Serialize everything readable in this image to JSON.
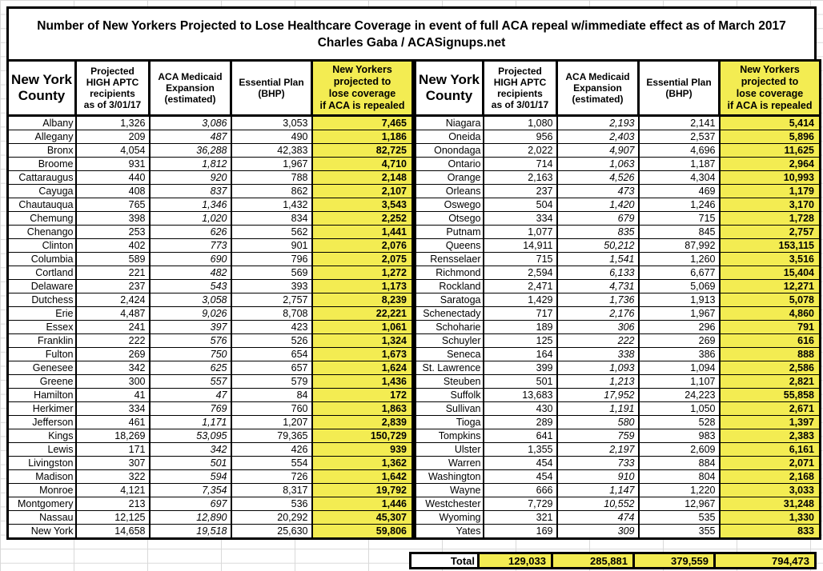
{
  "title": {
    "line1": "Number of New Yorkers Projected to Lose Healthcare Coverage in event of full ACA repeal w/immediate effect as of March 2017",
    "line2": "Charles Gaba / ACASignups.net"
  },
  "table": {
    "headers": [
      "New York\nCounty",
      "Projected\nHIGH APTC\nrecipients\nas of 3/01/17",
      "ACA Medicaid\nExpansion\n(estimated)",
      "Essential Plan\n(BHP)",
      "New Yorkers\nprojected to\nlose coverage\nif ACA is repealed"
    ],
    "left_rows": [
      [
        "Albany",
        "1,326",
        "3,086",
        "3,053",
        "7,465"
      ],
      [
        "Allegany",
        "209",
        "487",
        "490",
        "1,186"
      ],
      [
        "Bronx",
        "4,054",
        "36,288",
        "42,383",
        "82,725"
      ],
      [
        "Broome",
        "931",
        "1,812",
        "1,967",
        "4,710"
      ],
      [
        "Cattaraugus",
        "440",
        "920",
        "788",
        "2,148"
      ],
      [
        "Cayuga",
        "408",
        "837",
        "862",
        "2,107"
      ],
      [
        "Chautauqua",
        "765",
        "1,346",
        "1,432",
        "3,543"
      ],
      [
        "Chemung",
        "398",
        "1,020",
        "834",
        "2,252"
      ],
      [
        "Chenango",
        "253",
        "626",
        "562",
        "1,441"
      ],
      [
        "Clinton",
        "402",
        "773",
        "901",
        "2,076"
      ],
      [
        "Columbia",
        "589",
        "690",
        "796",
        "2,075"
      ],
      [
        "Cortland",
        "221",
        "482",
        "569",
        "1,272"
      ],
      [
        "Delaware",
        "237",
        "543",
        "393",
        "1,173"
      ],
      [
        "Dutchess",
        "2,424",
        "3,058",
        "2,757",
        "8,239"
      ],
      [
        "Erie",
        "4,487",
        "9,026",
        "8,708",
        "22,221"
      ],
      [
        "Essex",
        "241",
        "397",
        "423",
        "1,061"
      ],
      [
        "Franklin",
        "222",
        "576",
        "526",
        "1,324"
      ],
      [
        "Fulton",
        "269",
        "750",
        "654",
        "1,673"
      ],
      [
        "Genesee",
        "342",
        "625",
        "657",
        "1,624"
      ],
      [
        "Greene",
        "300",
        "557",
        "579",
        "1,436"
      ],
      [
        "Hamilton",
        "41",
        "47",
        "84",
        "172"
      ],
      [
        "Herkimer",
        "334",
        "769",
        "760",
        "1,863"
      ],
      [
        "Jefferson",
        "461",
        "1,171",
        "1,207",
        "2,839"
      ],
      [
        "Kings",
        "18,269",
        "53,095",
        "79,365",
        "150,729"
      ],
      [
        "Lewis",
        "171",
        "342",
        "426",
        "939"
      ],
      [
        "Livingston",
        "307",
        "501",
        "554",
        "1,362"
      ],
      [
        "Madison",
        "322",
        "594",
        "726",
        "1,642"
      ],
      [
        "Monroe",
        "4,121",
        "7,354",
        "8,317",
        "19,792"
      ],
      [
        "Montgomery",
        "213",
        "697",
        "536",
        "1,446"
      ],
      [
        "Nassau",
        "12,125",
        "12,890",
        "20,292",
        "45,307"
      ],
      [
        "New York",
        "14,658",
        "19,518",
        "25,630",
        "59,806"
      ]
    ],
    "right_rows": [
      [
        "Niagara",
        "1,080",
        "2,193",
        "2,141",
        "5,414"
      ],
      [
        "Oneida",
        "956",
        "2,403",
        "2,537",
        "5,896"
      ],
      [
        "Onondaga",
        "2,022",
        "4,907",
        "4,696",
        "11,625"
      ],
      [
        "Ontario",
        "714",
        "1,063",
        "1,187",
        "2,964"
      ],
      [
        "Orange",
        "2,163",
        "4,526",
        "4,304",
        "10,993"
      ],
      [
        "Orleans",
        "237",
        "473",
        "469",
        "1,179"
      ],
      [
        "Oswego",
        "504",
        "1,420",
        "1,246",
        "3,170"
      ],
      [
        "Otsego",
        "334",
        "679",
        "715",
        "1,728"
      ],
      [
        "Putnam",
        "1,077",
        "835",
        "845",
        "2,757"
      ],
      [
        "Queens",
        "14,911",
        "50,212",
        "87,992",
        "153,115"
      ],
      [
        "Rensselaer",
        "715",
        "1,541",
        "1,260",
        "3,516"
      ],
      [
        "Richmond",
        "2,594",
        "6,133",
        "6,677",
        "15,404"
      ],
      [
        "Rockland",
        "2,471",
        "4,731",
        "5,069",
        "12,271"
      ],
      [
        "Saratoga",
        "1,429",
        "1,736",
        "1,913",
        "5,078"
      ],
      [
        "Schenectady",
        "717",
        "2,176",
        "1,967",
        "4,860"
      ],
      [
        "Schoharie",
        "189",
        "306",
        "296",
        "791"
      ],
      [
        "Schuyler",
        "125",
        "222",
        "269",
        "616"
      ],
      [
        "Seneca",
        "164",
        "338",
        "386",
        "888"
      ],
      [
        "St. Lawrence",
        "399",
        "1,093",
        "1,094",
        "2,586"
      ],
      [
        "Steuben",
        "501",
        "1,213",
        "1,107",
        "2,821"
      ],
      [
        "Suffolk",
        "13,683",
        "17,952",
        "24,223",
        "55,858"
      ],
      [
        "Sullivan",
        "430",
        "1,191",
        "1,050",
        "2,671"
      ],
      [
        "Tioga",
        "289",
        "580",
        "528",
        "1,397"
      ],
      [
        "Tompkins",
        "641",
        "759",
        "983",
        "2,383"
      ],
      [
        "Ulster",
        "1,355",
        "2,197",
        "2,609",
        "6,161"
      ],
      [
        "Warren",
        "454",
        "733",
        "884",
        "2,071"
      ],
      [
        "Washington",
        "454",
        "910",
        "804",
        "2,168"
      ],
      [
        "Wayne",
        "666",
        "1,147",
        "1,220",
        "3,033"
      ],
      [
        "Westchester",
        "7,729",
        "10,552",
        "12,967",
        "31,248"
      ],
      [
        "Wyoming",
        "321",
        "474",
        "535",
        "1,330"
      ],
      [
        "Yates",
        "169",
        "309",
        "355",
        "833"
      ]
    ]
  },
  "total": {
    "label": "Total",
    "values": [
      "129,033",
      "285,881",
      "379,559",
      "794,473"
    ]
  },
  "colors": {
    "highlight": "#F3EC52",
    "border": "#000000",
    "gridline": "#D9D9D9",
    "text": "#000000"
  }
}
